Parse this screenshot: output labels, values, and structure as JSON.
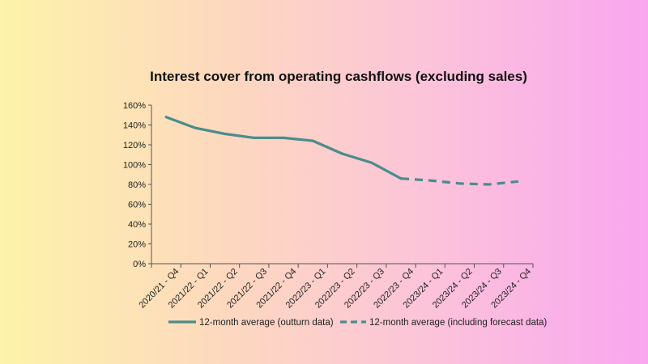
{
  "colors": {
    "series": "#4a8c8c",
    "axis": "#555555",
    "text": "#111111"
  },
  "chart_data": {
    "type": "line",
    "title": "Interest cover from operating cashflows (excluding sales)",
    "xlabel": "",
    "ylabel": "",
    "y_ticks": [
      "0%",
      "20%",
      "40%",
      "60%",
      "80%",
      "100%",
      "120%",
      "140%",
      "160%"
    ],
    "ylim": [
      0,
      160
    ],
    "grid": false,
    "legend_position": "bottom",
    "categories": [
      "2020/21 - Q4",
      "2021/22 - Q1",
      "2021/22 - Q2",
      "2021/22 - Q3",
      "2021/22 - Q4",
      "2022/23 - Q1",
      "2022/23 - Q2",
      "2022/23 - Q3",
      "2022/23 - Q4",
      "2023/24 - Q1",
      "2023/24 - Q2",
      "2023/24 - Q3",
      "2023/24 - Q4"
    ],
    "series": [
      {
        "name": "12-month average (outturn data)",
        "style": "solid",
        "points": [
          {
            "x": "2020/21 - Q4",
            "y": 148
          },
          {
            "x": "2021/22 - Q1",
            "y": 137
          },
          {
            "x": "2021/22 - Q2",
            "y": 131
          },
          {
            "x": "2021/22 - Q3",
            "y": 127
          },
          {
            "x": "2021/22 - Q4",
            "y": 127
          },
          {
            "x": "2022/23 - Q1",
            "y": 124
          },
          {
            "x": "2022/23 - Q2",
            "y": 111
          },
          {
            "x": "2022/23 - Q3",
            "y": 102
          },
          {
            "x": "2022/23 - Q4",
            "y": 86
          }
        ]
      },
      {
        "name": "12-month average (including forecast data)",
        "style": "dashed",
        "points": [
          {
            "x": "2022/23 - Q4",
            "y": 86
          },
          {
            "x": "2023/24 - Q1",
            "y": 84
          },
          {
            "x": "2023/24 - Q2",
            "y": 81
          },
          {
            "x": "2023/24 - Q3",
            "y": 80
          },
          {
            "x": "2023/24 - Q4",
            "y": 83
          }
        ]
      }
    ]
  }
}
